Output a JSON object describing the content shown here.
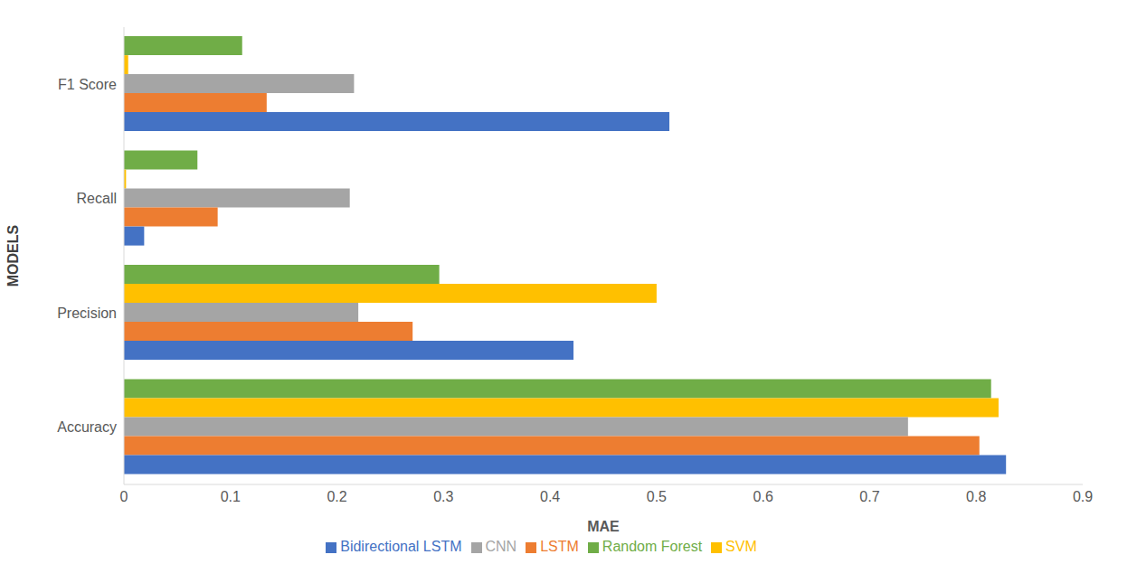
{
  "chart_data": {
    "type": "bar",
    "orientation": "horizontal",
    "x_label": "MAE",
    "y_label": "MODELS",
    "categories": [
      "F1 Score",
      "Recall",
      "Precision",
      "Accuracy"
    ],
    "series": [
      {
        "name": "Random Forest",
        "color": "#70ad47",
        "values": [
          0.111,
          0.069,
          0.296,
          0.814
        ]
      },
      {
        "name": "SVM",
        "color": "#ffc000",
        "values": [
          0.004,
          0.002,
          0.5,
          0.821
        ]
      },
      {
        "name": "CNN",
        "color": "#a5a5a5",
        "values": [
          0.216,
          0.212,
          0.22,
          0.736
        ]
      },
      {
        "name": "LSTM",
        "color": "#ed7d31",
        "values": [
          0.134,
          0.088,
          0.271,
          0.803
        ]
      },
      {
        "name": "Bidirectional LSTM",
        "color": "#4472c4",
        "values": [
          0.512,
          0.019,
          0.422,
          0.828
        ]
      }
    ],
    "xlim": [
      0,
      0.9
    ],
    "xticks": [
      0,
      0.1,
      0.2,
      0.3,
      0.4,
      0.5,
      0.6,
      0.7,
      0.8,
      0.9
    ],
    "grid": false,
    "legend": "bottom"
  }
}
